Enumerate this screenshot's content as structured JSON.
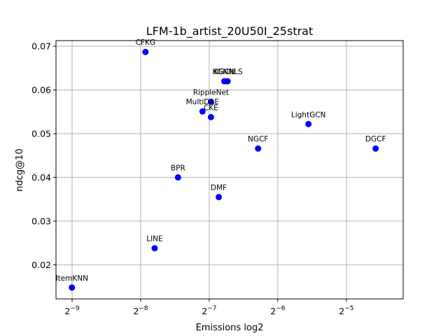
{
  "chart_data": {
    "type": "scatter",
    "title": "LFM-1b_artist_20U50I_25strat",
    "xlabel": "Emissions log2",
    "ylabel": "ndcg@10",
    "x_scale": "log2",
    "x_ticks": [
      {
        "value": 0.001953125,
        "base": "2",
        "exp": "−9"
      },
      {
        "value": 0.00390625,
        "base": "2",
        "exp": "−8"
      },
      {
        "value": 0.0078125,
        "base": "2",
        "exp": "−7"
      },
      {
        "value": 0.015625,
        "base": "2",
        "exp": "−6"
      },
      {
        "value": 0.03125,
        "base": "2",
        "exp": "−5"
      }
    ],
    "y_ticks": [
      {
        "value": 0.02,
        "label": "0.02"
      },
      {
        "value": 0.03,
        "label": "0.03"
      },
      {
        "value": 0.04,
        "label": "0.04"
      },
      {
        "value": 0.05,
        "label": "0.05"
      },
      {
        "value": 0.06,
        "label": "0.06"
      },
      {
        "value": 0.07,
        "label": "0.07"
      }
    ],
    "xlim": [
      0.00166,
      0.0555
    ],
    "ylim": [
      0.0122,
      0.0713
    ],
    "grid": true,
    "marker_color": "#0000ff",
    "points": [
      {
        "label": "ItemKNN",
        "x": 0.00195,
        "y": 0.0148
      },
      {
        "label": "LINE",
        "x": 0.0045,
        "y": 0.0238
      },
      {
        "label": "BPR",
        "x": 0.0057,
        "y": 0.04
      },
      {
        "label": "DMF",
        "x": 0.0086,
        "y": 0.0355
      },
      {
        "label": "CFKG",
        "x": 0.0041,
        "y": 0.0687
      },
      {
        "label": "RippleNet",
        "x": 0.00795,
        "y": 0.0573
      },
      {
        "label": "CKE",
        "x": 0.00795,
        "y": 0.0538
      },
      {
        "label": "MultiDAE",
        "x": 0.0073,
        "y": 0.0551
      },
      {
        "label": "KGCN",
        "x": 0.0091,
        "y": 0.062
      },
      {
        "label": "KGNNLS",
        "x": 0.0094,
        "y": 0.062
      },
      {
        "label": "NGCF",
        "x": 0.0128,
        "y": 0.0466
      },
      {
        "label": "LightGCN",
        "x": 0.0213,
        "y": 0.0522
      },
      {
        "label": "DGCF",
        "x": 0.042,
        "y": 0.0466
      }
    ]
  }
}
